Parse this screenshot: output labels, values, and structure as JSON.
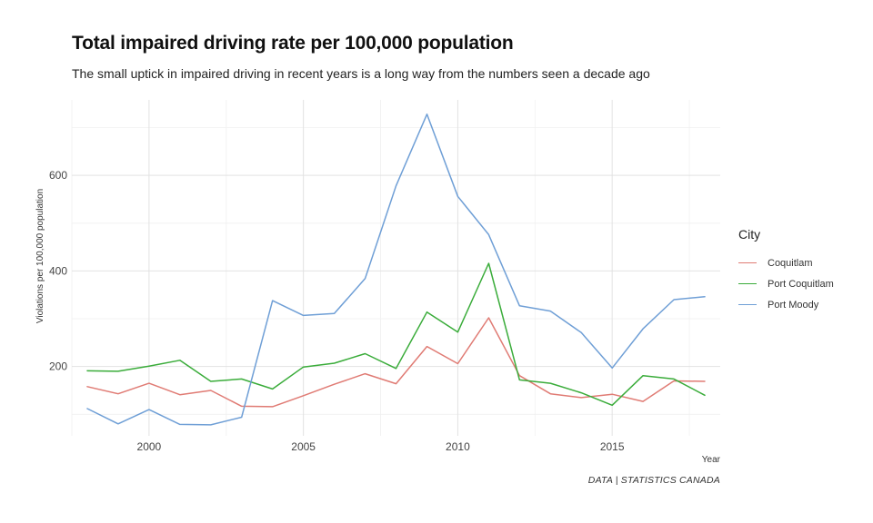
{
  "chart_data": {
    "type": "line",
    "title": "Total impaired driving rate per 100,000 population",
    "subtitle": "The small uptick in impaired driving in recent years is a long way from the numbers seen a decade ago",
    "xlabel": "Year",
    "ylabel": "Violations per 100,000 population",
    "caption": "DATA | STATISTICS CANADA",
    "legend_title": "City",
    "legend_position": "right",
    "grid": true,
    "xlim": [
      1997.5,
      2018.5
    ],
    "ylim": [
      55,
      758
    ],
    "x_ticks": [
      2000,
      2005,
      2010,
      2015
    ],
    "y_ticks": [
      200,
      400,
      600
    ],
    "x": [
      1998,
      1999,
      2000,
      2001,
      2002,
      2003,
      2004,
      2005,
      2006,
      2007,
      2008,
      2009,
      2010,
      2011,
      2012,
      2013,
      2014,
      2015,
      2016,
      2017,
      2018
    ],
    "series": [
      {
        "name": "Coquitlam",
        "color": "#e07b74",
        "values": [
          158,
          143,
          165,
          141,
          150,
          117,
          116,
          139,
          163,
          185,
          164,
          242,
          206,
          302,
          181,
          143,
          135,
          142,
          127,
          170,
          169
        ]
      },
      {
        "name": "Port Coquitlam",
        "color": "#3aac3a",
        "values": [
          191,
          190,
          201,
          213,
          169,
          174,
          153,
          199,
          207,
          227,
          196,
          314,
          272,
          416,
          172,
          165,
          145,
          119,
          181,
          174,
          140
        ]
      },
      {
        "name": "Port Moody",
        "color": "#6f9fd6",
        "values": [
          112,
          80,
          110,
          79,
          78,
          94,
          338,
          307,
          311,
          384,
          578,
          728,
          556,
          476,
          327,
          316,
          271,
          197,
          279,
          340,
          346
        ]
      }
    ]
  }
}
